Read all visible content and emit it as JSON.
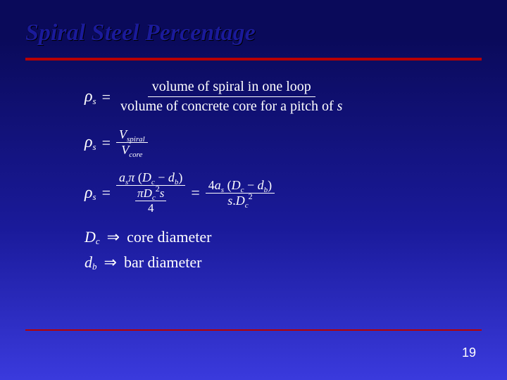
{
  "slide": {
    "title": "Spiral Steel Percentage",
    "title_fontsize": 34,
    "title_color": "#1a1a9a",
    "rule_color": "#b80000",
    "page_number": "19",
    "page_number_fontsize": 18,
    "background_gradient": [
      "#0a0a5a",
      "#3a3add"
    ],
    "text_color": "#ffffff"
  },
  "eq1": {
    "lhs_symbol": "ρ",
    "lhs_sub": "s",
    "numerator": "volume of spiral in one loop",
    "denominator_prefix": "volume of concrete core for a pitch of ",
    "denominator_var": "s"
  },
  "eq2": {
    "lhs_symbol": "ρ",
    "lhs_sub": "s",
    "num_var": "V",
    "num_sub": "spiral",
    "den_var": "V",
    "den_sub": "core"
  },
  "eq3": {
    "lhs_symbol": "ρ",
    "lhs_sub": "s",
    "left": {
      "num_a": "a",
      "num_a_sub": "s",
      "num_pi": "π",
      "num_paren_l": "(",
      "num_D": "D",
      "num_D_sub": "c",
      "num_minus": " − ",
      "num_d": "d",
      "num_d_sub": "b",
      "num_paren_r": ")",
      "den_pi": "π",
      "den_D": "D",
      "den_D_sub": "c",
      "den_D_sup": "2",
      "den_s": "s",
      "den_divisor": "4"
    },
    "right": {
      "num_4": "4",
      "num_a": "a",
      "num_a_sub": "s",
      "num_paren_l": "(",
      "num_D": "D",
      "num_D_sub": "c",
      "num_minus": " − ",
      "num_d": "d",
      "num_d_sub": "b",
      "num_paren_r": ")",
      "den_s": "s",
      "den_dot": ".",
      "den_D": "D",
      "den_D_sub": "c",
      "den_D_sup": "2"
    }
  },
  "defs": {
    "d1_sym": "D",
    "d1_sub": "c",
    "d1_text": "core diameter",
    "d2_sym": "d",
    "d2_sub": "b",
    "d2_text": "bar diameter",
    "implies": "⇒"
  }
}
